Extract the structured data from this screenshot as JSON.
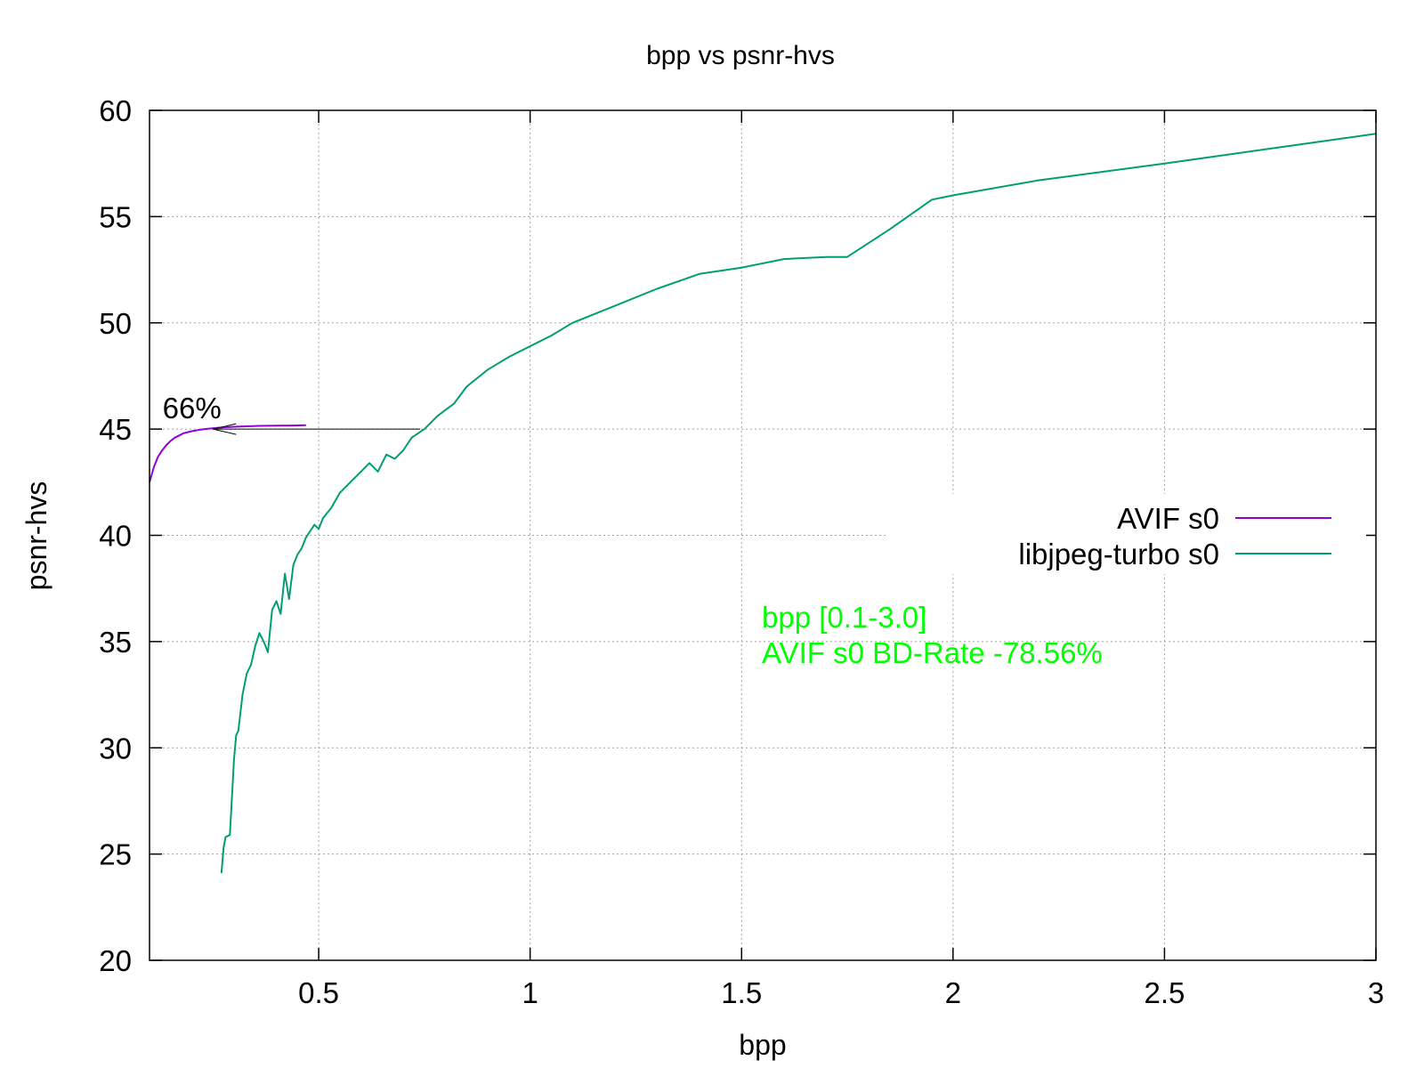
{
  "chart_data": {
    "type": "line",
    "title": "bpp vs psnr-hvs",
    "xlabel": "bpp",
    "ylabel": "psnr-hvs",
    "xlim": [
      0.1,
      3
    ],
    "ylim": [
      20,
      60
    ],
    "xticks": [
      0.5,
      1,
      1.5,
      2,
      2.5,
      3
    ],
    "xtick_labels": [
      "0.5",
      "1",
      "1.5",
      "2",
      "2.5",
      "3"
    ],
    "yticks": [
      20,
      25,
      30,
      35,
      40,
      45,
      50,
      55,
      60
    ],
    "ytick_labels": [
      "20",
      "25",
      "30",
      "35",
      "40",
      "45",
      "50",
      "55",
      "60"
    ],
    "grid": true,
    "legend_position": "right",
    "series": [
      {
        "name": "AVIF s0",
        "color": "#9400d3",
        "x": [
          0.1,
          0.11,
          0.12,
          0.13,
          0.14,
          0.15,
          0.16,
          0.17,
          0.18,
          0.2,
          0.22,
          0.24,
          0.26,
          0.28,
          0.3,
          0.33,
          0.36,
          0.4,
          0.44,
          0.47
        ],
        "y": [
          42.5,
          43.2,
          43.7,
          44.0,
          44.25,
          44.45,
          44.6,
          44.7,
          44.8,
          44.9,
          44.97,
          45.02,
          45.06,
          45.09,
          45.11,
          45.13,
          45.15,
          45.16,
          45.17,
          45.18
        ]
      },
      {
        "name": "libjpeg-turbo s0",
        "color": "#009e73",
        "x": [
          0.27,
          0.275,
          0.28,
          0.29,
          0.3,
          0.305,
          0.31,
          0.32,
          0.33,
          0.34,
          0.35,
          0.36,
          0.37,
          0.38,
          0.39,
          0.4,
          0.41,
          0.42,
          0.43,
          0.44,
          0.45,
          0.46,
          0.47,
          0.48,
          0.49,
          0.5,
          0.51,
          0.53,
          0.55,
          0.57,
          0.6,
          0.62,
          0.64,
          0.66,
          0.68,
          0.7,
          0.72,
          0.75,
          0.78,
          0.8,
          0.82,
          0.85,
          0.9,
          0.95,
          1.0,
          1.05,
          1.1,
          1.2,
          1.3,
          1.4,
          1.5,
          1.6,
          1.7,
          1.75,
          1.85,
          1.95,
          2.0,
          2.2,
          2.5,
          2.75,
          3.0
        ],
        "y": [
          24.1,
          25.3,
          25.8,
          25.9,
          29.5,
          30.6,
          30.8,
          32.5,
          33.5,
          33.9,
          34.8,
          35.4,
          35.0,
          34.5,
          36.5,
          36.9,
          36.3,
          38.2,
          37.0,
          38.6,
          39.1,
          39.4,
          39.9,
          40.2,
          40.5,
          40.3,
          40.8,
          41.3,
          42.0,
          42.4,
          43.0,
          43.4,
          43.0,
          43.8,
          43.6,
          44.0,
          44.6,
          45.0,
          45.6,
          45.9,
          46.2,
          47.0,
          47.8,
          48.4,
          48.9,
          49.4,
          50.0,
          50.8,
          51.6,
          52.3,
          52.6,
          53.0,
          53.1,
          53.1,
          54.4,
          55.8,
          56.0,
          56.7,
          57.5,
          58.2,
          58.9
        ]
      }
    ],
    "annotations": [
      {
        "text": "66%",
        "arrow_from": [
          0.74,
          45.0
        ],
        "arrow_to": [
          0.25,
          45.0
        ]
      }
    ],
    "info_box": {
      "color": "#00ff00",
      "lines": [
        "bpp [0.1-3.0]",
        "AVIF s0 BD-Rate -78.56%"
      ]
    }
  }
}
